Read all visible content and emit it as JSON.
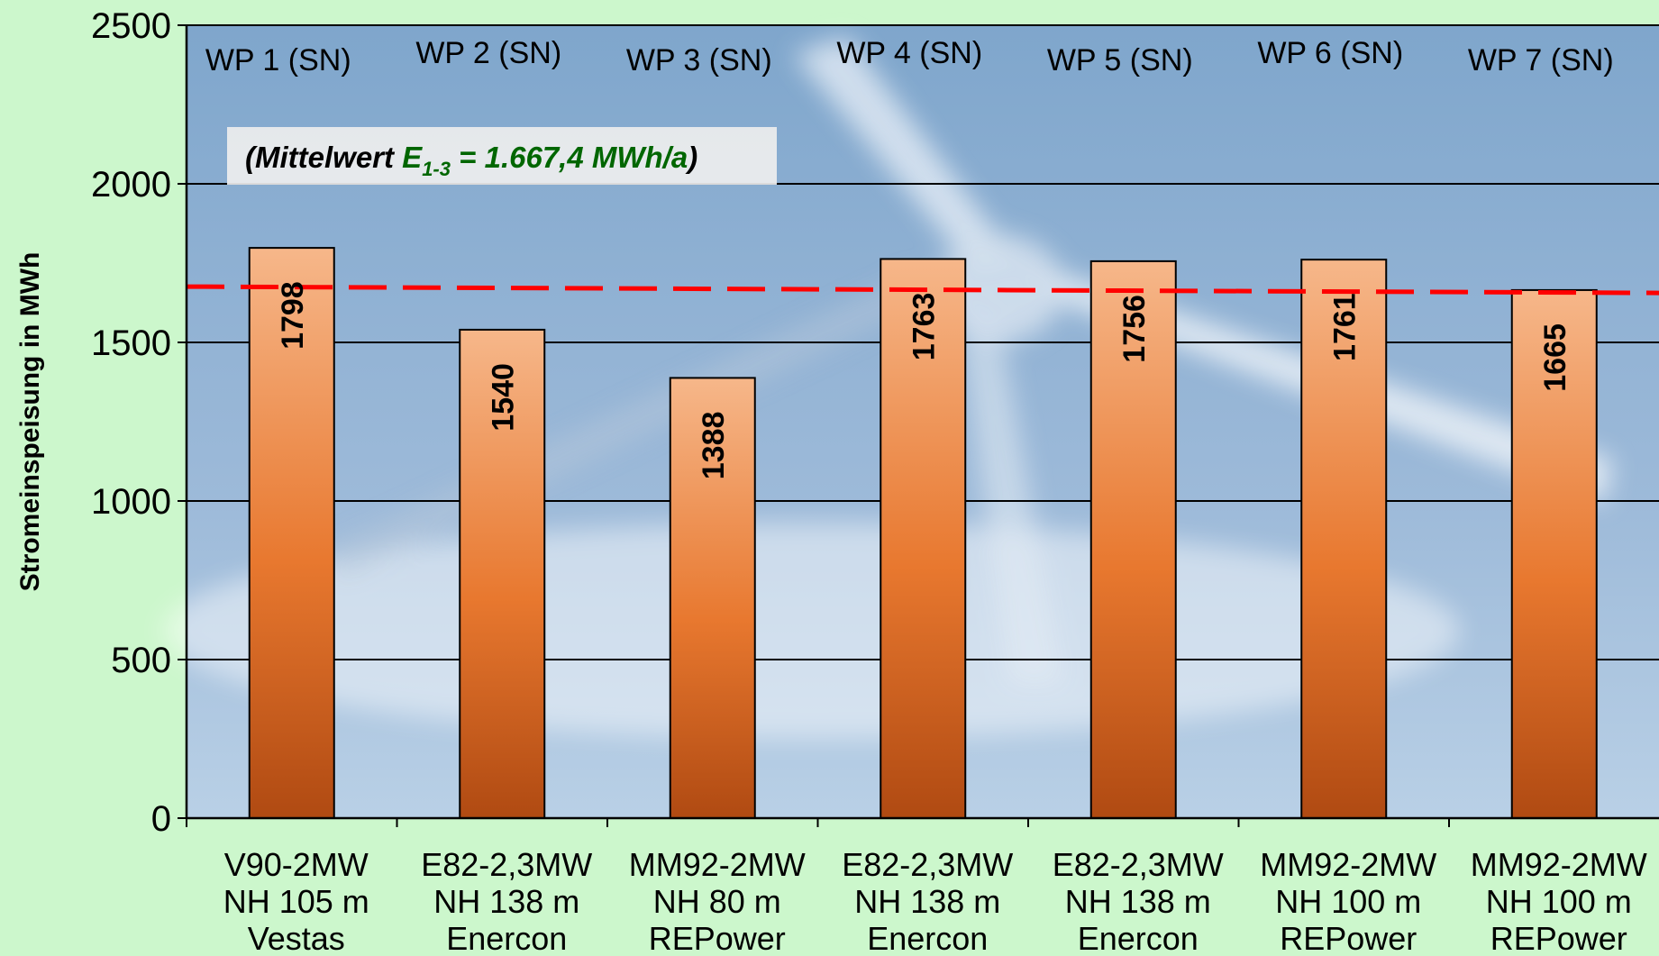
{
  "chart_data": {
    "type": "bar",
    "ylabel": "Stromeinspeisung in MWh",
    "ylim": [
      0,
      2500
    ],
    "yticks": [
      0,
      500,
      1000,
      1500,
      2000,
      2500
    ],
    "grid": true,
    "series": [
      {
        "name": "",
        "values": [
          1798,
          1540,
          1388,
          1763,
          1756,
          1761,
          1665
        ]
      }
    ],
    "park_labels": [
      "WP 1 (SN)",
      "WP 2 (SN)",
      "WP 3 (SN)",
      "WP 4 (SN)",
      "WP 5 (SN)",
      "WP 6 (SN)",
      "WP 7 (SN)"
    ],
    "categories": [
      [
        "V90-2MW",
        "NH 105 m",
        "Vestas"
      ],
      [
        "E82-2,3MW",
        "NH 138 m",
        "Enercon"
      ],
      [
        "MM92-2MW",
        "NH 80 m",
        "REPower"
      ],
      [
        "E82-2,3MW",
        "NH 138 m",
        "Enercon"
      ],
      [
        "E82-2,3MW",
        "NH 138 m",
        "Enercon"
      ],
      [
        "MM92-2MW",
        "NH 100 m",
        "REPower"
      ],
      [
        "MM92-2MW",
        "NH 100 m",
        "REPower"
      ]
    ],
    "reference_line": {
      "value": 1667.4,
      "style": "dashed",
      "color": "#ff0000"
    },
    "annotation": {
      "prefix": "(Mittelwert ",
      "symbol": "E",
      "subscript": "1-3",
      "value_text": " = 1.667,4 MWh/a",
      "suffix": ")"
    },
    "colors": {
      "bar_light": "#f6b78a",
      "bar_mid": "#e8782f",
      "bar_dark": "#b04a12",
      "plot_top": "#7fa6cc",
      "plot_bottom": "#b9d0e6",
      "page_background": "#ccf7cc",
      "annotation_green": "#006600"
    }
  }
}
